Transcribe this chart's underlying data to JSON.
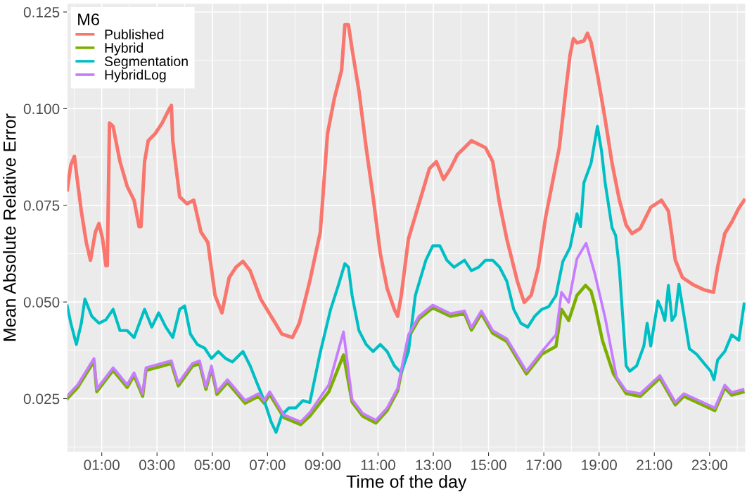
{
  "chart_data": {
    "type": "line",
    "xlabel": "Time of the day",
    "ylabel": "Mean Absolute Relative Error",
    "legend_title": "M6",
    "legend": "top left",
    "grid": true,
    "line_style": "solid",
    "marker": "none",
    "xlim": [
      -0.25,
      24.3
    ],
    "ylim": [
      0.0112,
      0.1272
    ],
    "xticks": [
      {
        "value": 1,
        "label": "01:00"
      },
      {
        "value": 3,
        "label": "03:00"
      },
      {
        "value": 5,
        "label": "05:00"
      },
      {
        "value": 7,
        "label": "07:00"
      },
      {
        "value": 9,
        "label": "09:00"
      },
      {
        "value": 11,
        "label": "11:00"
      },
      {
        "value": 13,
        "label": "13:00"
      },
      {
        "value": 15,
        "label": "15:00"
      },
      {
        "value": 17,
        "label": "17:00"
      },
      {
        "value": 19,
        "label": "19:00"
      },
      {
        "value": 21,
        "label": "21:00"
      },
      {
        "value": 23,
        "label": "23:00"
      }
    ],
    "yticks": [
      {
        "value": 0.025,
        "label": "0.025"
      },
      {
        "value": 0.05,
        "label": "0.050"
      },
      {
        "value": 0.075,
        "label": "0.075"
      },
      {
        "value": 0.1,
        "label": "0.100"
      },
      {
        "value": 0.125,
        "label": "0.125"
      }
    ],
    "series": [
      {
        "name": "Published",
        "color": "#f8766d",
        "x": [
          -0.25,
          -0.12,
          0.01,
          0.08,
          0.26,
          0.44,
          0.59,
          0.77,
          0.9,
          1.03,
          1.15,
          1.2,
          1.28,
          1.41,
          1.66,
          1.92,
          2.17,
          2.35,
          2.42,
          2.55,
          2.68,
          2.93,
          3.19,
          3.44,
          3.52,
          3.57,
          3.82,
          4.08,
          4.33,
          4.59,
          4.84,
          5.1,
          5.35,
          5.61,
          5.86,
          6.11,
          6.37,
          6.75,
          7.13,
          7.52,
          7.9,
          8.15,
          8.53,
          8.91,
          9.17,
          9.42,
          9.68,
          9.8,
          9.93,
          10.06,
          10.31,
          10.57,
          10.82,
          11.08,
          11.33,
          11.59,
          11.71,
          11.84,
          12.1,
          12.48,
          12.86,
          13.11,
          13.37,
          13.62,
          13.87,
          14.13,
          14.38,
          14.64,
          14.89,
          15.15,
          15.4,
          15.66,
          16.04,
          16.29,
          16.54,
          16.8,
          17.06,
          17.31,
          17.56,
          17.82,
          17.95,
          18.07,
          18.2,
          18.45,
          18.58,
          18.71,
          18.96,
          19.22,
          19.47,
          19.73,
          19.98,
          20.19,
          20.49,
          20.87,
          21.26,
          21.51,
          21.76,
          22.02,
          22.4,
          22.78,
          23.14,
          23.29,
          23.55,
          23.8,
          24.06,
          24.25
        ],
        "values": [
          0.079,
          0.0854,
          0.0877,
          0.0835,
          0.0735,
          0.0654,
          0.0608,
          0.0681,
          0.0703,
          0.0663,
          0.0594,
          0.0594,
          0.0963,
          0.0954,
          0.0863,
          0.0799,
          0.0763,
          0.0695,
          0.0695,
          0.0863,
          0.0917,
          0.0935,
          0.0963,
          0.0999,
          0.1008,
          0.0917,
          0.0772,
          0.0754,
          0.0763,
          0.0681,
          0.0654,
          0.0517,
          0.0472,
          0.0563,
          0.059,
          0.0605,
          0.0581,
          0.0508,
          0.0463,
          0.0417,
          0.0408,
          0.0445,
          0.0554,
          0.0681,
          0.0935,
          0.1027,
          0.1099,
          0.1217,
          0.1217,
          0.1154,
          0.1045,
          0.0899,
          0.0772,
          0.0626,
          0.0535,
          0.0481,
          0.0463,
          0.0517,
          0.0663,
          0.0754,
          0.0845,
          0.0863,
          0.0817,
          0.0845,
          0.0881,
          0.0899,
          0.0917,
          0.0908,
          0.0899,
          0.0863,
          0.0754,
          0.0663,
          0.0554,
          0.0499,
          0.0517,
          0.059,
          0.0717,
          0.0808,
          0.0899,
          0.1063,
          0.1139,
          0.1181,
          0.117,
          0.1175,
          0.1195,
          0.1172,
          0.1081,
          0.0972,
          0.0859,
          0.0765,
          0.0699,
          0.0677,
          0.069,
          0.0745,
          0.0763,
          0.0735,
          0.0608,
          0.0563,
          0.0545,
          0.0532,
          0.0525,
          0.059,
          0.0677,
          0.0706,
          0.0743,
          0.0763
        ]
      },
      {
        "name": "Hybrid",
        "color": "#7cae00",
        "x": [
          -0.25,
          0.13,
          0.72,
          0.82,
          1.41,
          1.92,
          2.17,
          2.48,
          2.6,
          3.06,
          3.52,
          3.77,
          4.28,
          4.54,
          4.77,
          4.97,
          5.17,
          5.55,
          6.19,
          6.67,
          6.88,
          7.08,
          7.59,
          8.2,
          8.53,
          9.22,
          9.75,
          10.06,
          10.44,
          10.92,
          11.33,
          11.71,
          12.1,
          12.48,
          12.98,
          13.62,
          14.13,
          14.38,
          14.74,
          15.15,
          15.66,
          16.37,
          16.93,
          17.44,
          17.64,
          17.9,
          18.2,
          18.51,
          18.71,
          18.86,
          19.12,
          19.52,
          19.98,
          20.49,
          21.2,
          21.76,
          22.07,
          22.53,
          23.19,
          23.55,
          23.8,
          24.21
        ],
        "values": [
          0.025,
          0.0279,
          0.0347,
          0.0268,
          0.0323,
          0.0279,
          0.031,
          0.0256,
          0.0323,
          0.0332,
          0.0341,
          0.0283,
          0.0334,
          0.0341,
          0.0274,
          0.0328,
          0.0261,
          0.0292,
          0.0238,
          0.0256,
          0.0238,
          0.0261,
          0.0201,
          0.0183,
          0.0205,
          0.0268,
          0.0363,
          0.0241,
          0.0205,
          0.0187,
          0.0219,
          0.027,
          0.0408,
          0.0456,
          0.0485,
          0.0463,
          0.047,
          0.0427,
          0.047,
          0.0419,
          0.0398,
          0.0314,
          0.0365,
          0.0385,
          0.0481,
          0.0452,
          0.0517,
          0.0543,
          0.0528,
          0.0488,
          0.0401,
          0.0314,
          0.0263,
          0.0256,
          0.0303,
          0.0234,
          0.0256,
          0.0241,
          0.0219,
          0.0278,
          0.0259,
          0.0267
        ]
      },
      {
        "name": "Segmentation",
        "color": "#00bfc4",
        "x": [
          -0.25,
          -0.12,
          0.08,
          0.26,
          0.39,
          0.64,
          0.9,
          1.15,
          1.41,
          1.66,
          1.92,
          2.17,
          2.55,
          2.81,
          3.06,
          3.32,
          3.57,
          3.82,
          4.0,
          4.21,
          4.46,
          4.72,
          4.97,
          5.22,
          5.48,
          5.73,
          6.11,
          6.37,
          6.62,
          6.88,
          7.13,
          7.31,
          7.52,
          7.77,
          8.02,
          8.28,
          8.53,
          8.91,
          9.28,
          9.55,
          9.8,
          9.93,
          10.06,
          10.31,
          10.57,
          10.82,
          11.08,
          11.33,
          11.59,
          11.84,
          12.1,
          12.35,
          12.73,
          12.98,
          13.24,
          13.49,
          13.75,
          14.13,
          14.38,
          14.64,
          14.89,
          15.15,
          15.4,
          15.66,
          15.91,
          16.17,
          16.42,
          16.67,
          16.93,
          17.18,
          17.44,
          17.69,
          17.95,
          18.2,
          18.33,
          18.45,
          18.71,
          18.94,
          19.09,
          19.22,
          19.47,
          19.6,
          19.73,
          19.98,
          20.11,
          20.36,
          20.62,
          20.74,
          20.87,
          21.13,
          21.26,
          21.38,
          21.51,
          21.64,
          21.76,
          21.89,
          22.02,
          22.27,
          22.53,
          22.78,
          23.04,
          23.16,
          23.29,
          23.55,
          23.8,
          24.06,
          24.25
        ],
        "values": [
          0.049,
          0.0445,
          0.039,
          0.0445,
          0.0508,
          0.0463,
          0.0445,
          0.0454,
          0.0481,
          0.0426,
          0.0426,
          0.0408,
          0.0481,
          0.0435,
          0.0472,
          0.0435,
          0.0408,
          0.0481,
          0.049,
          0.0417,
          0.039,
          0.0381,
          0.0354,
          0.0372,
          0.0354,
          0.0345,
          0.0372,
          0.0335,
          0.029,
          0.0245,
          0.019,
          0.0163,
          0.0208,
          0.0226,
          0.0226,
          0.0245,
          0.024,
          0.037,
          0.048,
          0.054,
          0.0599,
          0.059,
          0.0517,
          0.0426,
          0.039,
          0.0372,
          0.039,
          0.0372,
          0.0335,
          0.0317,
          0.0372,
          0.0517,
          0.0608,
          0.0645,
          0.0645,
          0.0608,
          0.059,
          0.0608,
          0.0581,
          0.059,
          0.0608,
          0.0608,
          0.059,
          0.0554,
          0.0481,
          0.0445,
          0.0435,
          0.0463,
          0.0481,
          0.0488,
          0.0517,
          0.0605,
          0.0641,
          0.0728,
          0.0695,
          0.0808,
          0.0859,
          0.0954,
          0.089,
          0.0808,
          0.0692,
          0.0672,
          0.059,
          0.0335,
          0.0321,
          0.0335,
          0.0386,
          0.0445,
          0.0386,
          0.0503,
          0.0481,
          0.0452,
          0.0543,
          0.0452,
          0.0466,
          0.0546,
          0.0488,
          0.0379,
          0.0365,
          0.0343,
          0.0321,
          0.0299,
          0.035,
          0.0372,
          0.0415,
          0.0401,
          0.0495
        ]
      },
      {
        "name": "HybridLog",
        "color": "#c77cff",
        "x": [
          -0.25,
          0.13,
          0.72,
          0.82,
          1.41,
          1.92,
          2.17,
          2.48,
          2.6,
          3.06,
          3.52,
          3.77,
          4.28,
          4.54,
          4.77,
          4.97,
          5.17,
          5.55,
          6.19,
          6.67,
          6.88,
          7.08,
          7.59,
          8.2,
          8.53,
          9.22,
          9.75,
          10.06,
          10.44,
          10.92,
          11.33,
          11.71,
          12.1,
          12.48,
          12.98,
          13.62,
          14.13,
          14.38,
          14.74,
          15.15,
          15.66,
          16.37,
          16.93,
          17.44,
          17.64,
          17.9,
          18.2,
          18.53,
          18.84,
          19.22,
          19.63,
          19.98,
          20.49,
          21.2,
          21.76,
          22.07,
          22.53,
          23.19,
          23.55,
          23.8,
          24.21
        ],
        "values": [
          0.0257,
          0.0286,
          0.0354,
          0.0275,
          0.033,
          0.0286,
          0.0317,
          0.0263,
          0.033,
          0.0339,
          0.0348,
          0.029,
          0.0341,
          0.0348,
          0.0281,
          0.0335,
          0.0268,
          0.0299,
          0.0245,
          0.0263,
          0.0245,
          0.0268,
          0.0208,
          0.019,
          0.0214,
          0.0286,
          0.0423,
          0.0248,
          0.0212,
          0.0194,
          0.0226,
          0.0277,
          0.0415,
          0.0463,
          0.0492,
          0.047,
          0.0477,
          0.0434,
          0.0477,
          0.0426,
          0.0405,
          0.0321,
          0.0372,
          0.0415,
          0.0525,
          0.0499,
          0.0612,
          0.0652,
          0.0575,
          0.0459,
          0.0306,
          0.027,
          0.0263,
          0.031,
          0.0241,
          0.0263,
          0.0248,
          0.0226,
          0.0285,
          0.0266,
          0.0274
        ]
      }
    ]
  }
}
